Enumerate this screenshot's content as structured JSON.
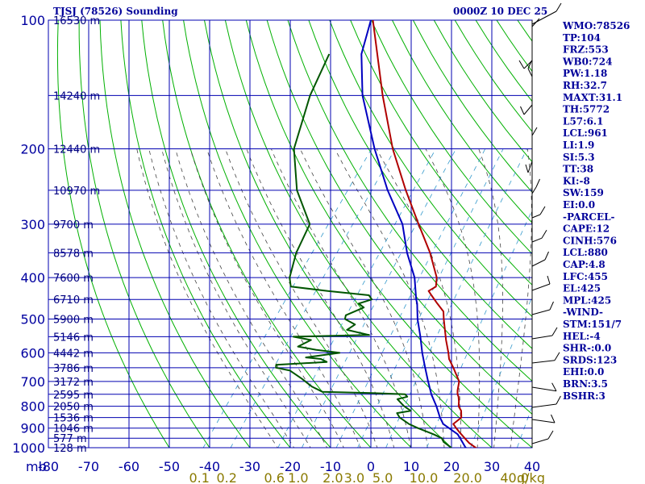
{
  "header": {
    "station": "TJSJ (78526) Sounding",
    "time": "0000Z 10 DEC 25"
  },
  "chart_data": {
    "type": "line",
    "xlabel": "",
    "ylabel": "",
    "pressure_unit_label": "mb",
    "mixing_unit_label": "g/kg",
    "x_axis": {
      "min": -80,
      "max": 40,
      "ticks": [
        "-80",
        "-70",
        "-60",
        "-50",
        "-40",
        "-30",
        "-20",
        "-10",
        "0",
        "10",
        "20",
        "30",
        "40"
      ]
    },
    "y_axis": {
      "scale": "log",
      "top": 100,
      "bottom": 1000,
      "ticks": [
        "100",
        "200",
        "300",
        "400",
        "500",
        "600",
        "700",
        "800",
        "900",
        "1000"
      ]
    },
    "mixing_ratio_labels": [
      "0.1",
      "0.2",
      "0.6",
      "1.0",
      "2.0",
      "3.0",
      "5.0",
      "10.0",
      "20.0",
      "40.0"
    ],
    "heights": [
      {
        "p": 100,
        "label": "16530 m"
      },
      {
        "p": 150,
        "label": "14240 m"
      },
      {
        "p": 200,
        "label": "12440 m"
      },
      {
        "p": 250,
        "label": "10970 m"
      },
      {
        "p": 300,
        "label": "9700 m"
      },
      {
        "p": 350,
        "label": "8578 m"
      },
      {
        "p": 400,
        "label": "7600 m"
      },
      {
        "p": 450,
        "label": "6710 m"
      },
      {
        "p": 500,
        "label": "5900 m"
      },
      {
        "p": 550,
        "label": "5146 m"
      },
      {
        "p": 600,
        "label": "4442 m"
      },
      {
        "p": 650,
        "label": "3786 m"
      },
      {
        "p": 700,
        "label": "3172 m"
      },
      {
        "p": 750,
        "label": "2595 m"
      },
      {
        "p": 800,
        "label": "2050 m"
      },
      {
        "p": 850,
        "label": "1536 m"
      },
      {
        "p": 900,
        "label": "1046 m"
      },
      {
        "p": 950,
        "label": "577 m"
      },
      {
        "p": 1000,
        "label": "128 m"
      }
    ],
    "series": [
      {
        "key": "temperature",
        "color": "#b00000",
        "points": [
          [
            1012,
            27.5
          ],
          [
            1000,
            26.0
          ],
          [
            975,
            23.5
          ],
          [
            950,
            21.5
          ],
          [
            925,
            19.5
          ],
          [
            900,
            17.5
          ],
          [
            880,
            16.0
          ],
          [
            850,
            16.8
          ],
          [
            820,
            15.5
          ],
          [
            800,
            14.0
          ],
          [
            780,
            13.2
          ],
          [
            760,
            12.2
          ],
          [
            750,
            11.5
          ],
          [
            735,
            10.8
          ],
          [
            700,
            9.5
          ],
          [
            650,
            5.5
          ],
          [
            620,
            2.8
          ],
          [
            600,
            1.5
          ],
          [
            560,
            -1.5
          ],
          [
            500,
            -6.0
          ],
          [
            480,
            -7.5
          ],
          [
            460,
            -10.5
          ],
          [
            440,
            -13.5
          ],
          [
            430,
            -15.0
          ],
          [
            420,
            -14.0
          ],
          [
            400,
            -15.5
          ],
          [
            350,
            -21.8
          ],
          [
            300,
            -30.0
          ],
          [
            250,
            -39.5
          ],
          [
            200,
            -50.5
          ],
          [
            150,
            -63.0
          ],
          [
            100,
            -79.5
          ]
        ]
      },
      {
        "key": "dewpoint",
        "color": "#005500",
        "points": [
          [
            1012,
            21.0
          ],
          [
            990,
            19.0
          ],
          [
            970,
            17.0
          ],
          [
            950,
            15.8
          ],
          [
            930,
            13.0
          ],
          [
            900,
            8.0
          ],
          [
            880,
            5.0
          ],
          [
            850,
            1.5
          ],
          [
            830,
            0.0
          ],
          [
            820,
            3.0
          ],
          [
            800,
            0.5
          ],
          [
            790,
            -0.5
          ],
          [
            770,
            -2.5
          ],
          [
            760,
            -0.5
          ],
          [
            750,
            -1.5
          ],
          [
            745,
            -10.0
          ],
          [
            740,
            -22.5
          ],
          [
            720,
            -26.0
          ],
          [
            690,
            -30.0
          ],
          [
            660,
            -34.5
          ],
          [
            650,
            -38.5
          ],
          [
            640,
            -39.0
          ],
          [
            630,
            -27.0
          ],
          [
            620,
            -29.0
          ],
          [
            615,
            -33.0
          ],
          [
            600,
            -25.5
          ],
          [
            590,
            -32.0
          ],
          [
            580,
            -37.0
          ],
          [
            560,
            -35.0
          ],
          [
            550,
            -40.0
          ],
          [
            545,
            -21.5
          ],
          [
            530,
            -28.0
          ],
          [
            515,
            -27.0
          ],
          [
            500,
            -30.5
          ],
          [
            490,
            -31.0
          ],
          [
            470,
            -28.0
          ],
          [
            460,
            -30.0
          ],
          [
            450,
            -27.5
          ],
          [
            440,
            -29.0
          ],
          [
            430,
            -40.0
          ],
          [
            420,
            -50.0
          ],
          [
            400,
            -52.0
          ],
          [
            350,
            -55.0
          ],
          [
            300,
            -57.0
          ],
          [
            250,
            -66.5
          ],
          [
            200,
            -75.0
          ],
          [
            150,
            -81.0
          ],
          [
            120,
            -84.0
          ]
        ]
      },
      {
        "key": "parcel",
        "color": "#0000c0",
        "points": [
          [
            1012,
            25.5
          ],
          [
            1000,
            23.5
          ],
          [
            960,
            21.0
          ],
          [
            930,
            19.0
          ],
          [
            880,
            13.5
          ],
          [
            850,
            11.5
          ],
          [
            800,
            8.5
          ],
          [
            750,
            5.0
          ],
          [
            700,
            1.8
          ],
          [
            650,
            -1.5
          ],
          [
            600,
            -5.0
          ],
          [
            550,
            -8.5
          ],
          [
            500,
            -12.5
          ],
          [
            460,
            -15.5
          ],
          [
            450,
            -16.5
          ],
          [
            400,
            -21.0
          ],
          [
            350,
            -27.5
          ],
          [
            300,
            -34.0
          ],
          [
            250,
            -44.0
          ],
          [
            200,
            -55.0
          ],
          [
            150,
            -68.0
          ],
          [
            120,
            -76.0
          ],
          [
            100,
            -80.0
          ]
        ]
      }
    ],
    "indices": [
      "WMO:78526",
      "TP:104",
      "FRZ:553",
      "WB0:724",
      "PW:1.18",
      "RH:32.7",
      "MAXT:31.1",
      "TH:5772",
      "L57:6.1",
      "LCL:961",
      "LI:1.9",
      "SI:5.3",
      "TT:38",
      "KI:-8",
      "SW:159",
      "EI:0.0",
      "-PARCEL-",
      "CAPE:12",
      "CINH:576",
      "LCL:880",
      "CAP:4.8",
      "LFC:455",
      "EL:425",
      "MPL:425",
      "-WIND-",
      "STM:151/7",
      "HEL:-4",
      "SHR-:0.0",
      "SRDS:123",
      "EHI:0.0",
      "BRN:3.5",
      "BSHR:3"
    ]
  },
  "colors": {
    "grid": "#0000b0",
    "dry_adiabat": "#00b000",
    "moist_adiabat": "#444444",
    "mixing_ratio": "#3399cc",
    "text": "#0000a0"
  }
}
